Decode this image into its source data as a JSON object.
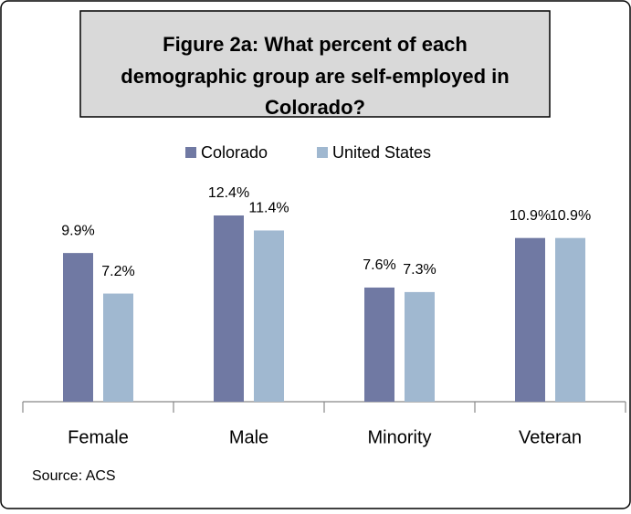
{
  "chart_data": {
    "type": "bar",
    "title": [
      "Figure 2a: What percent of each",
      "demographic group are self-employed in",
      "Colorado?"
    ],
    "categories": [
      "Female",
      "Male",
      "Minority",
      "Veteran"
    ],
    "series": [
      {
        "name": "Colorado",
        "color": "#7079a3",
        "values": [
          9.9,
          12.4,
          7.6,
          10.9
        ],
        "value_labels": [
          "9.9%",
          "12.4%",
          "7.6%",
          "10.9%"
        ]
      },
      {
        "name": "United States",
        "color": "#a0b8d0",
        "values": [
          7.2,
          11.4,
          7.3,
          10.9
        ],
        "value_labels": [
          "7.2%",
          "11.4%",
          "7.3%",
          "10.9%"
        ]
      }
    ],
    "legend": "top",
    "source": "Source: ACS"
  }
}
